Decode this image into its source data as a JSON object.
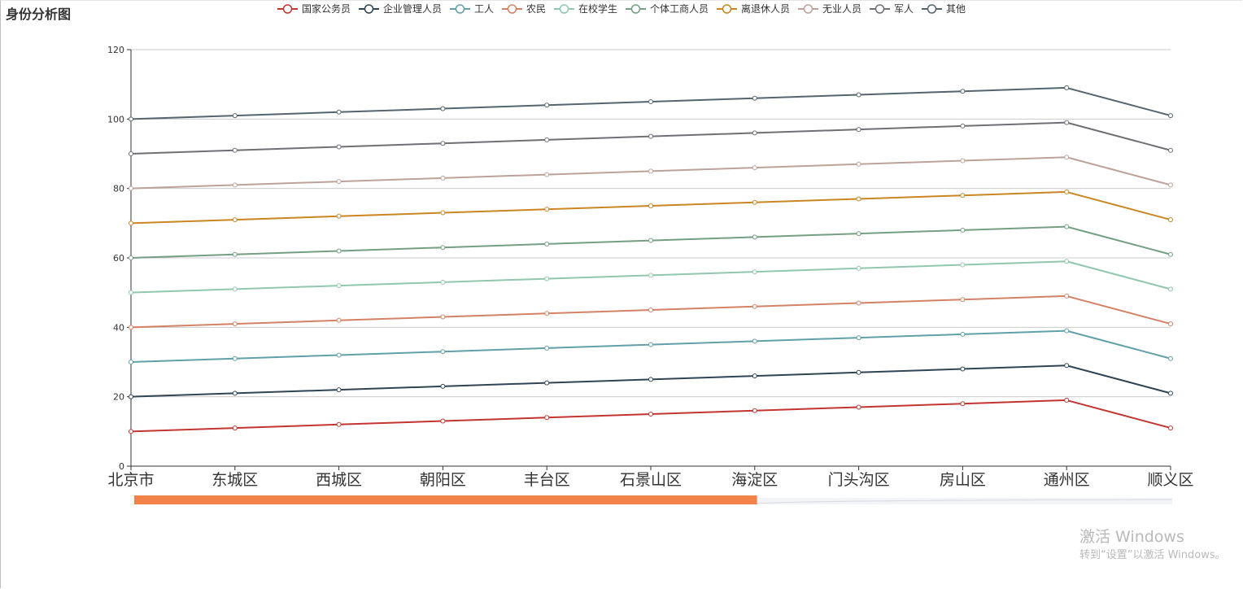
{
  "page": {
    "title": "身份分析图"
  },
  "chart_data": {
    "type": "line",
    "title": "身份分析图",
    "xlabel": "",
    "ylabel": "",
    "ylim": [
      0,
      120
    ],
    "yticks": [
      0,
      20,
      40,
      60,
      80,
      100,
      120
    ],
    "grid": "horizontal",
    "legend_position": "top-center",
    "markers": "hollow-circle",
    "categories": [
      "北京市",
      "东城区",
      "西城区",
      "朝阳区",
      "丰台区",
      "石景山区",
      "海淀区",
      "门头沟区",
      "房山区",
      "通州区",
      "顺义区"
    ],
    "series": [
      {
        "name": "国家公务员",
        "color": "#c23531",
        "values": [
          10,
          11,
          12,
          13,
          14,
          15,
          16,
          17,
          18,
          19,
          11
        ]
      },
      {
        "name": "企业管理人员",
        "color": "#2f4554",
        "values": [
          20,
          21,
          22,
          23,
          24,
          25,
          26,
          27,
          28,
          29,
          21
        ]
      },
      {
        "name": "工人",
        "color": "#61a0a8",
        "values": [
          30,
          31,
          32,
          33,
          34,
          35,
          36,
          37,
          38,
          39,
          31
        ]
      },
      {
        "name": "农民",
        "color": "#d48265",
        "values": [
          40,
          41,
          42,
          43,
          44,
          45,
          46,
          47,
          48,
          49,
          41
        ]
      },
      {
        "name": "在校学生",
        "color": "#91c7ae",
        "values": [
          50,
          51,
          52,
          53,
          54,
          55,
          56,
          57,
          58,
          59,
          51
        ]
      },
      {
        "name": "个体工商人员",
        "color": "#749f83",
        "values": [
          60,
          61,
          62,
          63,
          64,
          65,
          66,
          67,
          68,
          69,
          61
        ]
      },
      {
        "name": "离退休人员",
        "color": "#ca8622",
        "values": [
          70,
          71,
          72,
          73,
          74,
          75,
          76,
          77,
          78,
          79,
          71
        ]
      },
      {
        "name": "无业人员",
        "color": "#bda29a",
        "values": [
          80,
          81,
          82,
          83,
          84,
          85,
          86,
          87,
          88,
          89,
          81
        ]
      },
      {
        "name": "军人",
        "color": "#6e7074",
        "values": [
          90,
          91,
          92,
          93,
          94,
          95,
          96,
          97,
          98,
          99,
          91
        ]
      },
      {
        "name": "其他",
        "color": "#546570",
        "values": [
          100,
          101,
          102,
          103,
          104,
          105,
          106,
          107,
          108,
          109,
          101
        ]
      }
    ],
    "datazoom": {
      "start_percent": 0,
      "end_percent": 60,
      "fill_color": "#f3824a"
    }
  },
  "watermark": {
    "line1": "激活 Windows",
    "line2": "转到“设置”以激活 Windows。"
  }
}
